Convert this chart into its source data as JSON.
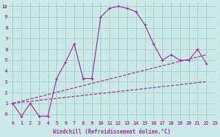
{
  "main_x": [
    0,
    1,
    2,
    3,
    4,
    5,
    6,
    7,
    8,
    9,
    10,
    11,
    12,
    13,
    14,
    15,
    16,
    17,
    18,
    19,
    20,
    21,
    22
  ],
  "main_y": [
    1.0,
    -0.2,
    1.0,
    -0.2,
    -0.2,
    3.3,
    4.8,
    6.5,
    3.3,
    3.3,
    9.0,
    9.8,
    10.0,
    9.8,
    9.5,
    8.3,
    6.5,
    5.0,
    5.5,
    5.0,
    5.0,
    6.0,
    4.7
  ],
  "line2_x": [
    0,
    22
  ],
  "line2_y": [
    1.0,
    5.5
  ],
  "line3_x": [
    0,
    22
  ],
  "line3_y": [
    1.0,
    3.0
  ],
  "bg_color": "#cce8e8",
  "grid_color": "#aacccc",
  "line_color": "#993399",
  "xlabel": "Windchill (Refroidissement éolien,°C)",
  "xlim": [
    -0.5,
    23
  ],
  "ylim": [
    -0.6,
    10.4
  ],
  "xticks": [
    0,
    1,
    2,
    3,
    4,
    5,
    6,
    7,
    8,
    9,
    10,
    11,
    12,
    13,
    14,
    15,
    16,
    17,
    18,
    19,
    20,
    21,
    22,
    23
  ],
  "yticks": [
    0,
    1,
    2,
    3,
    4,
    5,
    6,
    7,
    8,
    9,
    10
  ]
}
